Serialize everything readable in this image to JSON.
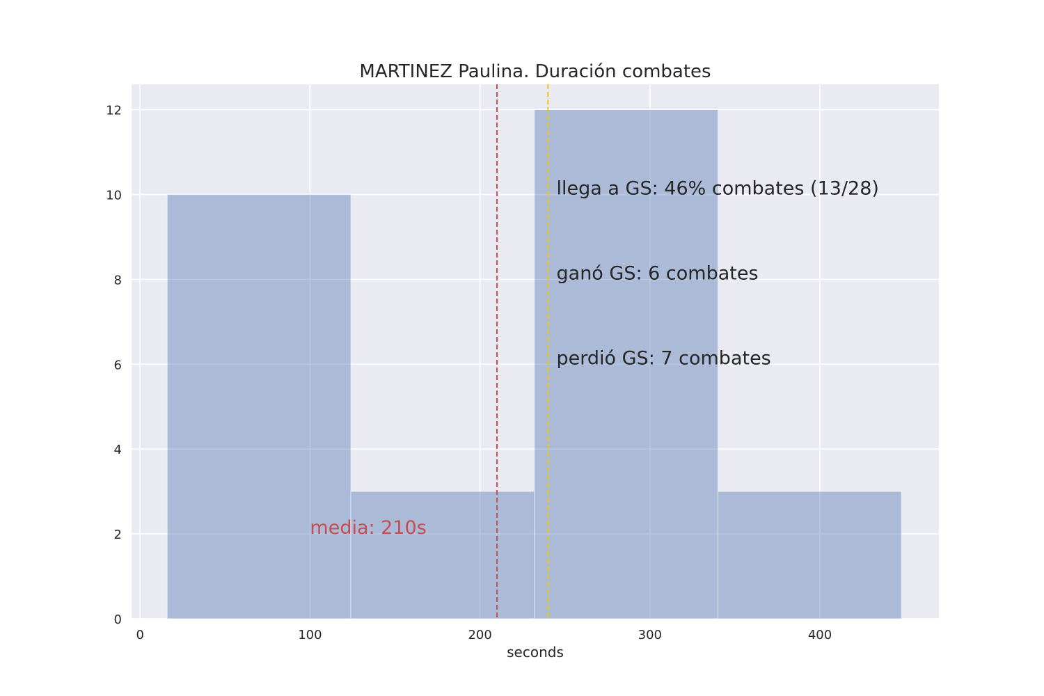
{
  "chart_data": {
    "type": "bar",
    "title": "MARTINEZ Paulina. Duración combates",
    "xlabel": "seconds",
    "ylabel": "",
    "xlim": [
      -5,
      470
    ],
    "ylim": [
      0,
      12.6
    ],
    "xticks": [
      0,
      100,
      200,
      300,
      400
    ],
    "yticks": [
      0,
      2,
      4,
      6,
      8,
      10,
      12
    ],
    "grid": true,
    "bins": [
      {
        "x0": 16,
        "x1": 124,
        "count": 10
      },
      {
        "x0": 124,
        "x1": 232,
        "count": 3
      },
      {
        "x0": 232,
        "x1": 340,
        "count": 12
      },
      {
        "x0": 340,
        "x1": 448,
        "count": 3
      }
    ],
    "colors": {
      "bar": "#4c72b0",
      "background": "#eaeaf2",
      "grid": "#ffffff",
      "mean_line": "#c44e52",
      "gs_line": "#f2c40f",
      "text": "#262626"
    },
    "mean_line": {
      "x": 210,
      "label": "media: 210s",
      "label_x": 100,
      "label_y": 2
    },
    "gs_line": {
      "x": 240
    },
    "annotations": [
      {
        "text": "llega a GS: 46% combates (13/28)",
        "x": 245,
        "y": 10
      },
      {
        "text": "ganó GS: 6 combates",
        "x": 245,
        "y": 8
      },
      {
        "text": "perdió GS: 7 combates",
        "x": 245,
        "y": 6
      }
    ]
  }
}
